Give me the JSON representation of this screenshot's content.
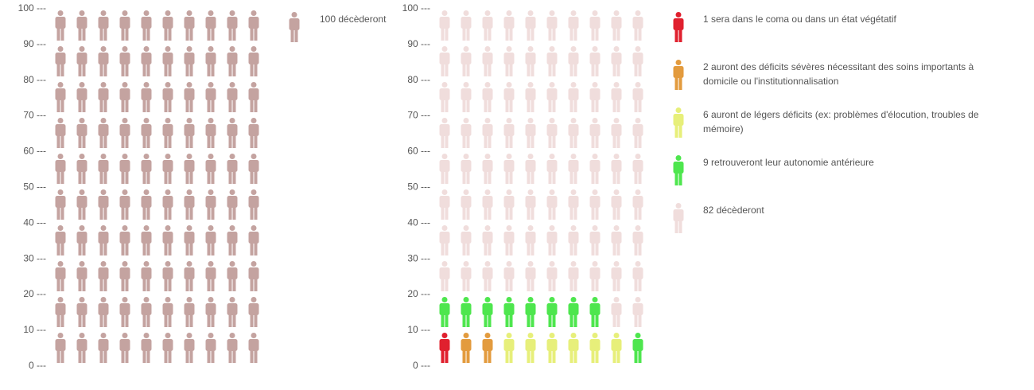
{
  "chart_data": [
    {
      "type": "pictogram",
      "title": "",
      "ylim": [
        0,
        100
      ],
      "y_ticks": [
        0,
        10,
        20,
        30,
        40,
        50,
        60,
        70,
        80,
        90,
        100
      ],
      "tick_suffix": " ---",
      "units_per_row": 10,
      "categories": [
        {
          "label": "100 décèderont",
          "count": 100,
          "color": "#c4a3a0"
        }
      ]
    },
    {
      "type": "pictogram",
      "title": "",
      "ylim": [
        0,
        100
      ],
      "y_ticks": [
        0,
        10,
        20,
        30,
        40,
        50,
        60,
        70,
        80,
        90,
        100
      ],
      "tick_suffix": " ---",
      "units_per_row": 10,
      "categories": [
        {
          "label": "1 sera dans le coma ou dans un état végétatif",
          "count": 1,
          "color": "#e0202e"
        },
        {
          "label": "2 auront des déficits sévères nécessitant des soins importants à domicile ou l'institutionnalisation",
          "count": 2,
          "color": "#e39b3e"
        },
        {
          "label": "6 auront de légers déficits (ex: problèmes d'élocution, troubles de mémoire)",
          "count": 6,
          "color": "#e7ef7a"
        },
        {
          "label": "9 retrouveront leur autonomie antérieure",
          "count": 9,
          "color": "#4ee64e"
        },
        {
          "label": "82 décèderont",
          "count": 82,
          "color": "#f0dddc"
        }
      ]
    }
  ]
}
